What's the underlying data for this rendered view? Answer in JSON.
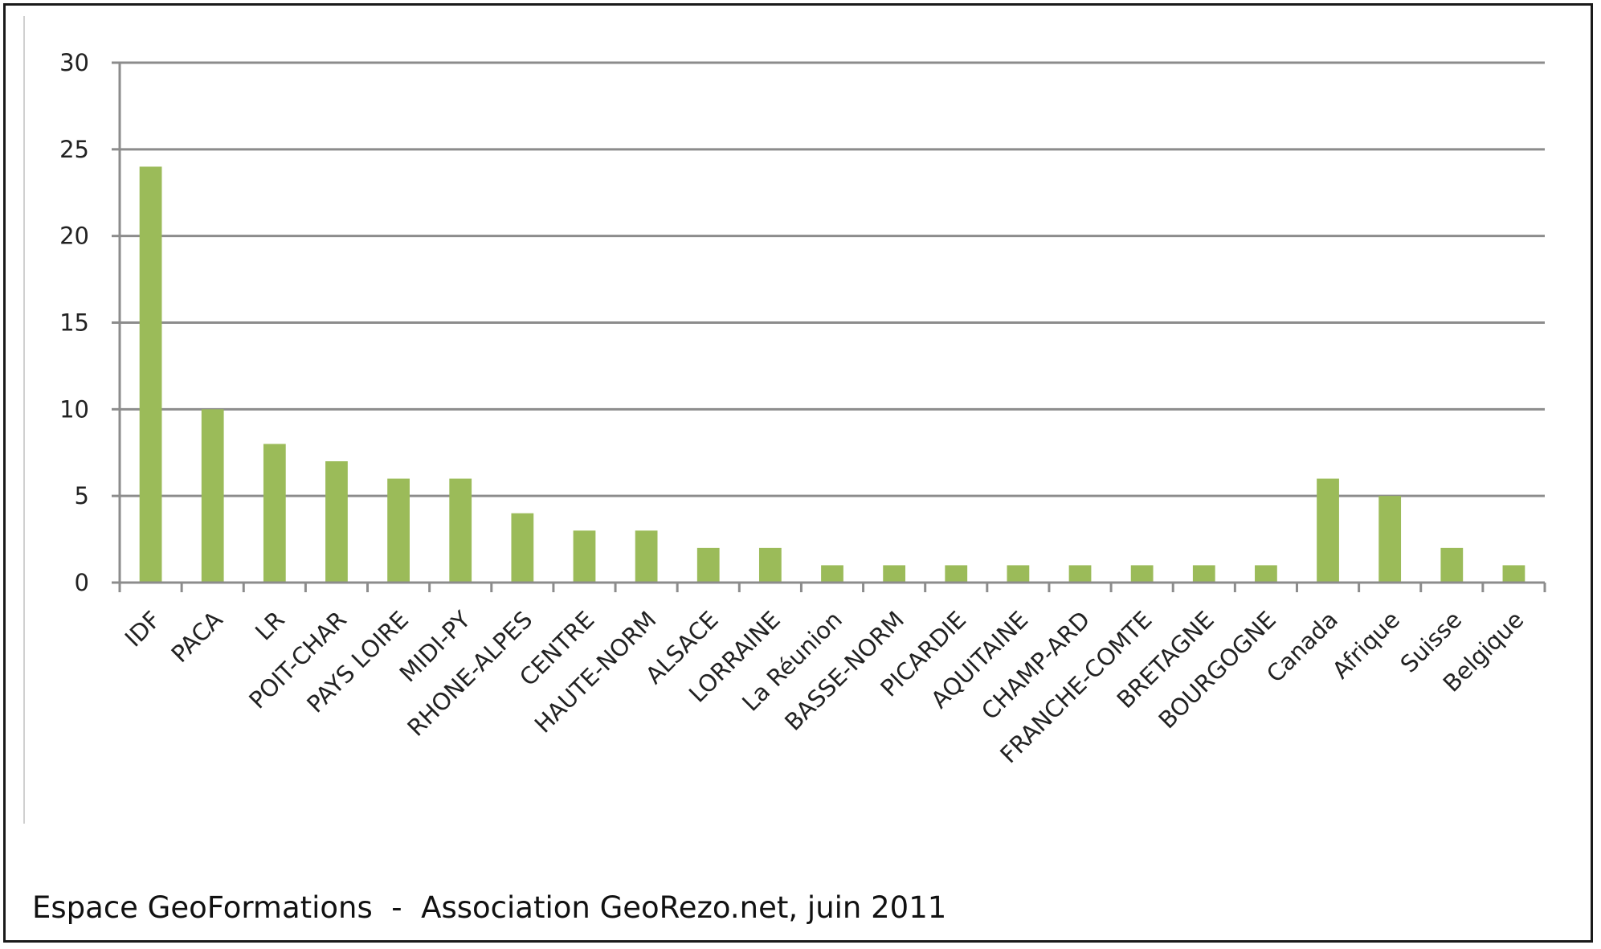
{
  "chart_data": {
    "type": "bar",
    "categories": [
      "IDF",
      "PACA",
      "LR",
      "POIT-CHAR",
      "PAYS LOIRE",
      "MIDI-PY",
      "RHONE-ALPES",
      "CENTRE",
      "HAUTE-NORM",
      "ALSACE",
      "LORRAINE",
      "La Réunion",
      "BASSE-NORM",
      "PICARDIE",
      "AQUITAINE",
      "CHAMP-ARD",
      "FRANCHE-COMTE",
      "BRETAGNE",
      "BOURGOGNE",
      "Canada",
      "Afrique",
      "Suisse",
      "Belgique"
    ],
    "values": [
      24,
      10,
      8,
      7,
      6,
      6,
      4,
      3,
      3,
      2,
      2,
      1,
      1,
      1,
      1,
      1,
      1,
      1,
      1,
      6,
      5,
      2,
      1
    ],
    "ylim": [
      0,
      30
    ],
    "yticks": [
      0,
      5,
      10,
      15,
      20,
      25,
      30
    ],
    "grid": true,
    "legend": "none",
    "bar_color": "#9bbb59",
    "title": "",
    "xlabel": "",
    "ylabel": ""
  },
  "caption": "Espace GeoFormations  -  Association GeoRezo.net, juin 2011"
}
